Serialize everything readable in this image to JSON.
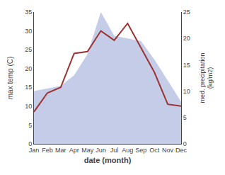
{
  "chart_data": {
    "type": "line",
    "xlabel": "date (month)",
    "ylabel": "max temp (C)",
    "y2label": "med. precipitation\n(kg/m2)",
    "categories": [
      "Jan",
      "Feb",
      "Mar",
      "Apr",
      "May",
      "Jun",
      "Jul",
      "Aug",
      "Sep",
      "Oct",
      "Nov",
      "Dec"
    ],
    "series": [
      {
        "type": "area",
        "axis": "y2",
        "color": "#c5cce8",
        "values": [
          10.0,
          10.5,
          11.0,
          13.0,
          17.0,
          25.0,
          20.5,
          20.0,
          19.5,
          16.0,
          12.0,
          8.0
        ]
      },
      {
        "type": "line",
        "color": "#9b3333",
        "values": [
          8.5,
          13.5,
          15.0,
          24.0,
          24.5,
          30.0,
          27.5,
          32.0,
          25.5,
          19.0,
          10.5,
          10.0
        ]
      }
    ],
    "ylim": [
      0,
      35
    ],
    "yticks": [
      0,
      5,
      10,
      15,
      20,
      25,
      30,
      35
    ],
    "y2lim": [
      0,
      25
    ],
    "y2ticks": [
      0,
      5,
      10,
      15,
      20,
      25
    ],
    "grid": false
  }
}
